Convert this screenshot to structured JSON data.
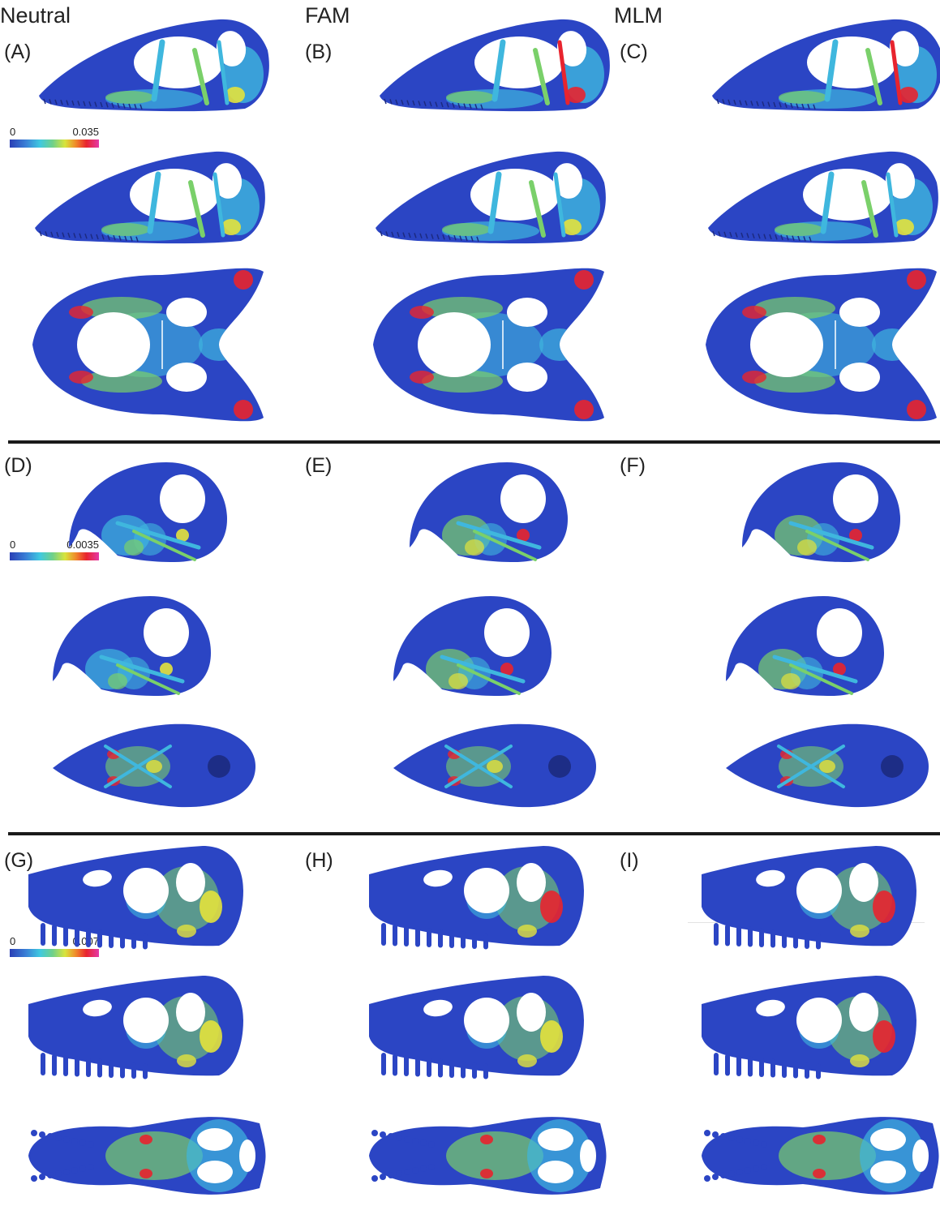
{
  "columns": [
    "Neutral",
    "FAM",
    "MLM"
  ],
  "panels": [
    "(A)",
    "(B)",
    "(C)",
    "(D)",
    "(E)",
    "(F)",
    "(G)",
    "(H)",
    "(I)"
  ],
  "scales": [
    {
      "min": "0",
      "max": "0.035"
    },
    {
      "min": "0",
      "max": "0.0035"
    },
    {
      "min": "0",
      "max": "0.007"
    }
  ],
  "colors": {
    "base": "#2b45c4",
    "mid": "#3fb7de",
    "green": "#7ad06a",
    "yellow": "#e3e23c",
    "red": "#e8242e",
    "magenta": "#e43aa8",
    "divider": "#1a1a1a"
  }
}
